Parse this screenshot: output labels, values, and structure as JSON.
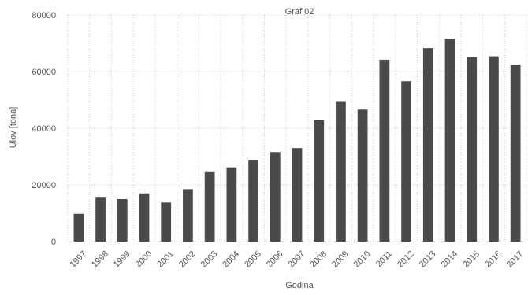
{
  "chart_data": {
    "type": "bar",
    "title": "Graf 02",
    "xlabel": "Godina",
    "ylabel": "Ulov [tona]",
    "ylim": [
      0,
      80000
    ],
    "yticks": [
      0,
      20000,
      40000,
      60000,
      80000
    ],
    "grid": true,
    "categories": [
      "1997",
      "1998",
      "1999",
      "2000",
      "2001",
      "2002",
      "2003",
      "2004",
      "2005",
      "2006",
      "2007",
      "2008",
      "2009",
      "2010",
      "2011",
      "2012",
      "2013",
      "2014",
      "2015",
      "2016",
      "2017"
    ],
    "values": [
      9800,
      15500,
      15000,
      17000,
      13800,
      18500,
      24500,
      26200,
      28600,
      31600,
      33000,
      42800,
      49300,
      46600,
      64200,
      56600,
      68300,
      71600,
      65200,
      65400,
      62500
    ],
    "bar_color": "#4a4a4a",
    "grid_color": "#c9c9c9"
  }
}
